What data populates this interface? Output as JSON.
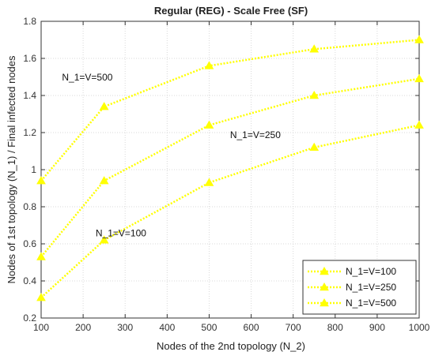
{
  "chart_data": {
    "type": "line",
    "title": "Regular (REG) - Scale Free (SF)",
    "xlabel": "Nodes of the 2nd topology (N_2)",
    "ylabel": "Nodes of 1st topology (N_1) / Final infected nodes",
    "x": [
      100,
      250,
      500,
      750,
      1000
    ],
    "xlim": [
      100,
      1000
    ],
    "ylim": [
      0.2,
      1.8
    ],
    "xticks": [
      100,
      200,
      300,
      400,
      500,
      600,
      700,
      800,
      900,
      1000
    ],
    "yticks": [
      0.2,
      0.4,
      0.6,
      0.8,
      1,
      1.2,
      1.4,
      1.6,
      1.8
    ],
    "grid": true,
    "legend_position": "bottom-right",
    "series_color": "#ffff00",
    "series": [
      {
        "name": "N_1=V=100",
        "values": [
          0.31,
          0.62,
          0.93,
          1.12,
          1.24
        ]
      },
      {
        "name": "N_1=V=250",
        "values": [
          0.53,
          0.94,
          1.24,
          1.4,
          1.49
        ]
      },
      {
        "name": "N_1=V=500",
        "values": [
          0.94,
          1.34,
          1.56,
          1.65,
          1.7
        ]
      }
    ],
    "annotations": [
      {
        "text": "N_1=V=500",
        "x": 210,
        "y": 1.48
      },
      {
        "text": "N_1=V=250",
        "x": 610,
        "y": 1.17
      },
      {
        "text": "N_1=V=100",
        "x": 290,
        "y": 0.64
      }
    ]
  }
}
